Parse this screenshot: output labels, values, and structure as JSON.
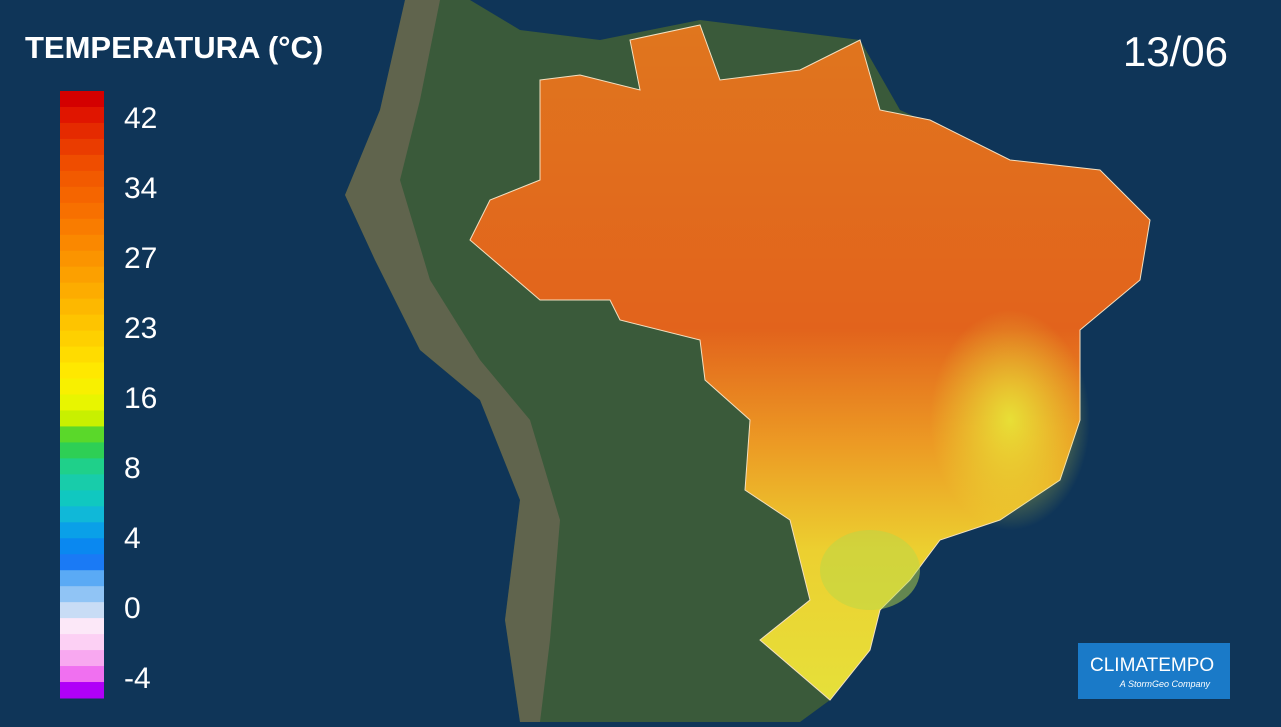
{
  "header": {
    "title": "TEMPERATURA (°C)",
    "date": "13/06"
  },
  "legend": {
    "labels": [
      "42",
      "34",
      "27",
      "23",
      "16",
      "8",
      "4",
      "0",
      "-4"
    ],
    "colors": [
      "#d40000",
      "#e01500",
      "#e52a00",
      "#ea3c00",
      "#ef4d00",
      "#f25a00",
      "#f56500",
      "#f77000",
      "#f97c00",
      "#fa8800",
      "#fb9400",
      "#fca000",
      "#fdac00",
      "#fdb800",
      "#fec400",
      "#fed000",
      "#ffdc00",
      "#ffe800",
      "#f8f000",
      "#e8f500",
      "#c8f000",
      "#5ad82a",
      "#2ecf55",
      "#1fd08a",
      "#18ccaa",
      "#10c8c0",
      "#10b8d8",
      "#0aa0e8",
      "#0a88f0",
      "#1a7af5",
      "#5aaaf5",
      "#90c4f5",
      "#c8dcf5",
      "#fce8f8",
      "#fcd0f4",
      "#f8a8f0",
      "#f070f0",
      "#b000f8"
    ]
  },
  "logo": {
    "name": "CLIMATEMPO",
    "tagline": "A StormGeo Company"
  }
}
